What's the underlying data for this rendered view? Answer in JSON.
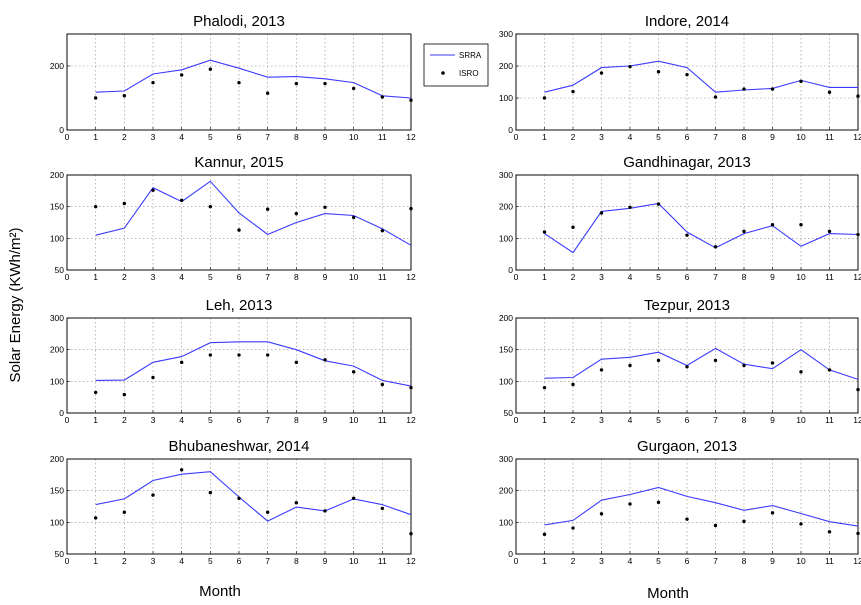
{
  "figure": {
    "ylabel": "Solar Energy (KWh/m²)",
    "xlabel": "Month"
  },
  "legend": {
    "entries": [
      {
        "name": "SRRA",
        "style": "line",
        "color": "#3b3bff"
      },
      {
        "name": "ISRO",
        "style": "marker",
        "color": "#000000"
      }
    ]
  },
  "chart_data": [
    {
      "type": "line",
      "title": "Phalodi, 2013",
      "xlim": [
        0,
        12
      ],
      "ylim": [
        0,
        300
      ],
      "xticks": [
        0,
        1,
        2,
        3,
        4,
        5,
        6,
        7,
        8,
        9,
        10,
        11,
        12
      ],
      "yticks": [
        0,
        200
      ],
      "ytick_labels": [
        "0",
        "200"
      ],
      "x": [
        1,
        2,
        3,
        4,
        5,
        6,
        7,
        8,
        9,
        10,
        11,
        12
      ],
      "series": [
        {
          "name": "SRRA",
          "values": [
            118,
            122,
            175,
            188,
            218,
            193,
            165,
            167,
            160,
            148,
            107,
            100
          ]
        },
        {
          "name": "ISRO",
          "values": [
            100,
            107,
            148,
            172,
            190,
            148,
            115,
            145,
            145,
            130,
            103,
            93
          ]
        }
      ]
    },
    {
      "type": "line",
      "title": "Indore, 2014",
      "xlim": [
        0,
        12
      ],
      "ylim": [
        0,
        300
      ],
      "xticks": [
        0,
        1,
        2,
        3,
        4,
        5,
        6,
        7,
        8,
        9,
        10,
        11,
        12
      ],
      "yticks": [
        0,
        100,
        200,
        300
      ],
      "ytick_labels": [
        "0",
        "100",
        "200",
        "300"
      ],
      "x": [
        1,
        2,
        3,
        4,
        5,
        6,
        7,
        8,
        9,
        10,
        11,
        12
      ],
      "series": [
        {
          "name": "SRRA",
          "values": [
            118,
            140,
            195,
            200,
            215,
            195,
            118,
            125,
            130,
            155,
            133,
            133
          ]
        },
        {
          "name": "ISRO",
          "values": [
            100,
            120,
            178,
            198,
            182,
            173,
            103,
            128,
            128,
            152,
            118,
            106
          ]
        }
      ]
    },
    {
      "type": "line",
      "title": "Kannur, 2015",
      "xlim": [
        0,
        12
      ],
      "ylim": [
        50,
        200
      ],
      "xticks": [
        0,
        1,
        2,
        3,
        4,
        5,
        6,
        7,
        8,
        9,
        10,
        11,
        12
      ],
      "yticks": [
        50,
        100,
        150,
        200
      ],
      "ytick_labels": [
        "50",
        "100",
        "150",
        "200"
      ],
      "x": [
        1,
        2,
        3,
        4,
        5,
        6,
        7,
        8,
        9,
        10,
        11,
        12
      ],
      "series": [
        {
          "name": "SRRA",
          "values": [
            105,
            116,
            180,
            158,
            190,
            140,
            106,
            125,
            139,
            136,
            115,
            89
          ]
        },
        {
          "name": "ISRO",
          "values": [
            150,
            155,
            176,
            160,
            150,
            113,
            146,
            139,
            149,
            133,
            112,
            147
          ]
        }
      ]
    },
    {
      "type": "line",
      "title": "Gandhinagar, 2013",
      "xlim": [
        0,
        12
      ],
      "ylim": [
        0,
        300
      ],
      "xticks": [
        0,
        1,
        2,
        3,
        4,
        5,
        6,
        7,
        8,
        9,
        10,
        11,
        12
      ],
      "yticks": [
        0,
        100,
        200,
        300
      ],
      "ytick_labels": [
        "0",
        "100",
        "200",
        "300"
      ],
      "x": [
        1,
        2,
        3,
        4,
        5,
        6,
        7,
        8,
        9,
        10,
        11,
        12
      ],
      "series": [
        {
          "name": "SRRA",
          "values": [
            115,
            55,
            185,
            195,
            210,
            120,
            70,
            115,
            140,
            75,
            115,
            112
          ]
        },
        {
          "name": "ISRO",
          "values": [
            120,
            135,
            180,
            198,
            208,
            110,
            73,
            122,
            143,
            143,
            122,
            112
          ]
        }
      ]
    },
    {
      "type": "line",
      "title": "Leh, 2013",
      "xlim": [
        0,
        12
      ],
      "ylim": [
        0,
        300
      ],
      "xticks": [
        0,
        1,
        2,
        3,
        4,
        5,
        6,
        7,
        8,
        9,
        10,
        11,
        12
      ],
      "yticks": [
        0,
        100,
        200,
        300
      ],
      "ytick_labels": [
        "0",
        "100",
        "200",
        "300"
      ],
      "x": [
        1,
        2,
        3,
        4,
        5,
        6,
        7,
        8,
        9,
        10,
        11,
        12
      ],
      "series": [
        {
          "name": "SRRA",
          "values": [
            103,
            104,
            160,
            178,
            222,
            225,
            225,
            200,
            165,
            148,
            103,
            85
          ]
        },
        {
          "name": "ISRO",
          "values": [
            65,
            58,
            112,
            160,
            183,
            183,
            183,
            160,
            168,
            130,
            90,
            80
          ]
        }
      ]
    },
    {
      "type": "line",
      "title": "Tezpur, 2013",
      "xlim": [
        0,
        12
      ],
      "ylim": [
        50,
        200
      ],
      "xticks": [
        0,
        1,
        2,
        3,
        4,
        5,
        6,
        7,
        8,
        9,
        10,
        11,
        12
      ],
      "yticks": [
        50,
        100,
        150,
        200
      ],
      "ytick_labels": [
        "50",
        "100",
        "150",
        "200"
      ],
      "x": [
        1,
        2,
        3,
        4,
        5,
        6,
        7,
        8,
        9,
        10,
        11,
        12
      ],
      "series": [
        {
          "name": "SRRA",
          "values": [
            105,
            106,
            135,
            138,
            146,
            125,
            152,
            127,
            120,
            150,
            118,
            103
          ]
        },
        {
          "name": "ISRO",
          "values": [
            90,
            95,
            118,
            125,
            133,
            123,
            133,
            125,
            129,
            115,
            118,
            87
          ]
        }
      ]
    },
    {
      "type": "line",
      "title": "Bhubaneshwar, 2014",
      "xlim": [
        0,
        12
      ],
      "ylim": [
        50,
        200
      ],
      "xticks": [
        0,
        1,
        2,
        3,
        4,
        5,
        6,
        7,
        8,
        9,
        10,
        11,
        12
      ],
      "yticks": [
        50,
        100,
        150,
        200
      ],
      "ytick_labels": [
        "50",
        "100",
        "150",
        "200"
      ],
      "x": [
        1,
        2,
        3,
        4,
        5,
        6,
        7,
        8,
        9,
        10,
        11,
        12
      ],
      "series": [
        {
          "name": "SRRA",
          "values": [
            128,
            137,
            166,
            176,
            180,
            140,
            102,
            124,
            118,
            137,
            128,
            112
          ]
        },
        {
          "name": "ISRO",
          "values": [
            107,
            116,
            143,
            183,
            147,
            138,
            116,
            131,
            118,
            138,
            122,
            82
          ]
        }
      ]
    },
    {
      "type": "line",
      "title": "Gurgaon, 2013",
      "xlim": [
        0,
        12
      ],
      "ylim": [
        0,
        300
      ],
      "xticks": [
        0,
        1,
        2,
        3,
        4,
        5,
        6,
        7,
        8,
        9,
        10,
        11,
        12
      ],
      "yticks": [
        0,
        100,
        200,
        300
      ],
      "ytick_labels": [
        "0",
        "100",
        "200",
        "300"
      ],
      "x": [
        1,
        2,
        3,
        4,
        5,
        6,
        7,
        8,
        9,
        10,
        11,
        12
      ],
      "series": [
        {
          "name": "SRRA",
          "values": [
            92,
            106,
            170,
            188,
            210,
            182,
            162,
            138,
            153,
            128,
            102,
            88
          ]
        },
        {
          "name": "ISRO",
          "values": [
            62,
            82,
            127,
            158,
            163,
            110,
            90,
            103,
            130,
            95,
            70,
            65
          ]
        }
      ]
    }
  ]
}
